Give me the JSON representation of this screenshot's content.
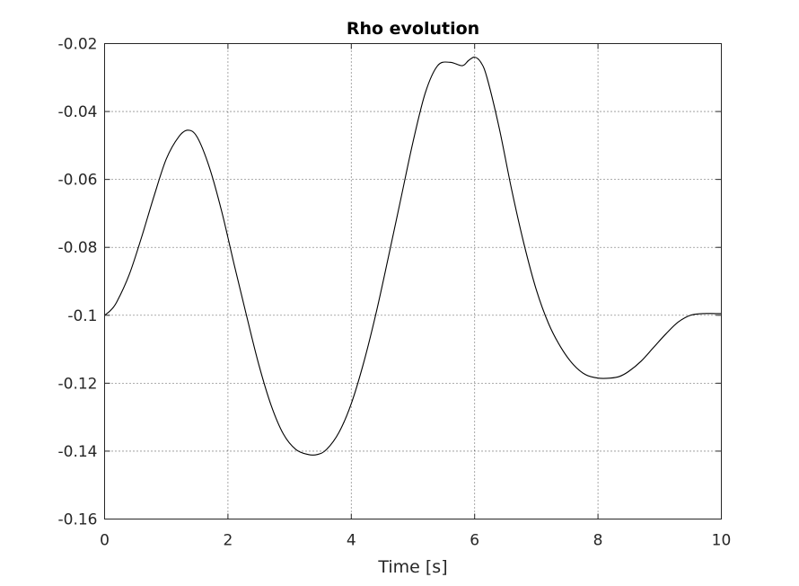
{
  "chart_data": {
    "type": "line",
    "title": "Rho evolution",
    "xlabel": "Time [s]",
    "ylabel": "",
    "xlim": [
      0,
      10
    ],
    "ylim": [
      -0.16,
      -0.02
    ],
    "xticks": [
      0,
      2,
      4,
      6,
      8,
      10
    ],
    "yticks": [
      -0.16,
      -0.14,
      -0.12,
      -0.1,
      -0.08,
      -0.06,
      -0.04,
      -0.02
    ],
    "xtick_labels": [
      "0",
      "2",
      "4",
      "6",
      "8",
      "10"
    ],
    "ytick_labels": [
      "-0.16",
      "-0.14",
      "-0.12",
      "-0.1",
      "-0.08",
      "-0.06",
      "-0.04",
      "-0.02"
    ],
    "grid": true,
    "grid_style": "dotted",
    "line_color": "#000000",
    "series": [
      {
        "x": [
          0,
          0.1,
          0.2,
          0.4,
          0.6,
          0.8,
          1.0,
          1.2,
          1.35,
          1.5,
          1.7,
          1.9,
          2.1,
          2.3,
          2.5,
          2.7,
          2.9,
          3.1,
          3.3,
          3.45,
          3.6,
          3.8,
          4.0,
          4.2,
          4.4,
          4.6,
          4.8,
          5.0,
          5.2,
          5.4,
          5.6,
          5.8,
          5.9,
          6.0,
          6.1,
          6.2,
          6.4,
          6.6,
          6.8,
          7.0,
          7.2,
          7.4,
          7.6,
          7.8,
          8.0,
          8.2,
          8.35,
          8.5,
          8.7,
          8.9,
          9.1,
          9.3,
          9.5,
          9.7,
          9.9,
          10.0
        ],
        "y": [
          -0.1,
          -0.0985,
          -0.096,
          -0.088,
          -0.077,
          -0.065,
          -0.054,
          -0.0475,
          -0.0455,
          -0.0475,
          -0.0565,
          -0.0695,
          -0.085,
          -0.1,
          -0.1145,
          -0.1265,
          -0.135,
          -0.1395,
          -0.141,
          -0.141,
          -0.1395,
          -0.1345,
          -0.126,
          -0.114,
          -0.0995,
          -0.083,
          -0.066,
          -0.049,
          -0.0345,
          -0.0265,
          -0.0255,
          -0.0265,
          -0.025,
          -0.024,
          -0.0255,
          -0.03,
          -0.045,
          -0.063,
          -0.079,
          -0.0925,
          -0.1025,
          -0.1095,
          -0.1145,
          -0.1175,
          -0.1185,
          -0.1185,
          -0.118,
          -0.1165,
          -0.1135,
          -0.1095,
          -0.1055,
          -0.102,
          -0.1,
          -0.0995,
          -0.0995,
          -0.0995
        ]
      }
    ]
  }
}
